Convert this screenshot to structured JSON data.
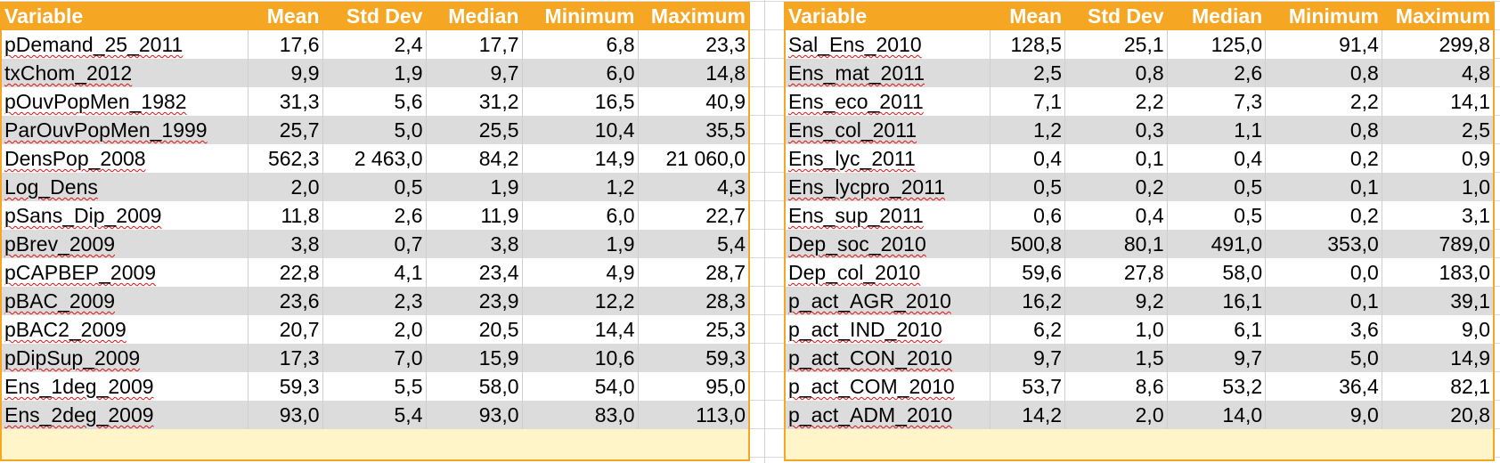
{
  "headers": [
    "Variable",
    "Mean",
    "Std Dev",
    "Median",
    "Minimum",
    "Maximum"
  ],
  "left_table": {
    "rows": [
      [
        "pDemand_25_2011",
        "17,6",
        "2,4",
        "17,7",
        "6,8",
        "23,3"
      ],
      [
        "txChom_2012",
        "9,9",
        "1,9",
        "9,7",
        "6,0",
        "14,8"
      ],
      [
        "pOuvPopMen_1982",
        "31,3",
        "5,6",
        "31,2",
        "16,5",
        "40,9"
      ],
      [
        "ParOuvPopMen_1999",
        "25,7",
        "5,0",
        "25,5",
        "10,4",
        "35,5"
      ],
      [
        "DensPop_2008",
        "562,3",
        "2 463,0",
        "84,2",
        "14,9",
        "21 060,0"
      ],
      [
        "Log_Dens",
        "2,0",
        "0,5",
        "1,9",
        "1,2",
        "4,3"
      ],
      [
        "pSans_Dip_2009",
        "11,8",
        "2,6",
        "11,9",
        "6,0",
        "22,7"
      ],
      [
        "pBrev_2009",
        "3,8",
        "0,7",
        "3,8",
        "1,9",
        "5,4"
      ],
      [
        "pCAPBEP_2009",
        "22,8",
        "4,1",
        "23,4",
        "4,9",
        "28,7"
      ],
      [
        "pBAC_2009",
        "23,6",
        "2,3",
        "23,9",
        "12,2",
        "28,3"
      ],
      [
        "pBAC2_2009",
        "20,7",
        "2,0",
        "20,5",
        "14,4",
        "25,3"
      ],
      [
        "pDipSup_2009",
        "17,3",
        "7,0",
        "15,9",
        "10,6",
        "59,3"
      ],
      [
        "Ens_1deg_2009",
        "59,3",
        "5,5",
        "58,0",
        "54,0",
        "95,0"
      ],
      [
        "Ens_2deg_2009",
        "93,0",
        "5,4",
        "93,0",
        "83,0",
        "113,0"
      ]
    ]
  },
  "right_table": {
    "rows": [
      [
        "Sal_Ens_2010",
        "128,5",
        "25,1",
        "125,0",
        "91,4",
        "299,8"
      ],
      [
        "Ens_mat_2011",
        "2,5",
        "0,8",
        "2,6",
        "0,8",
        "4,8"
      ],
      [
        "Ens_eco_2011",
        "7,1",
        "2,2",
        "7,3",
        "2,2",
        "14,1"
      ],
      [
        "Ens_col_2011",
        "1,2",
        "0,3",
        "1,1",
        "0,8",
        "2,5"
      ],
      [
        "Ens_lyc_2011",
        "0,4",
        "0,1",
        "0,4",
        "0,2",
        "0,9"
      ],
      [
        "Ens_lycpro_2011",
        "0,5",
        "0,2",
        "0,5",
        "0,1",
        "1,0"
      ],
      [
        "Ens_sup_2011",
        "0,6",
        "0,4",
        "0,5",
        "0,2",
        "3,1"
      ],
      [
        "Dep_soc_2010",
        "500,8",
        "80,1",
        "491,0",
        "353,0",
        "789,0"
      ],
      [
        "Dep_col_2010",
        "59,6",
        "27,8",
        "58,0",
        "0,0",
        "183,0"
      ],
      [
        "p_act_AGR_2010",
        "16,2",
        "9,2",
        "16,1",
        "0,1",
        "39,1"
      ],
      [
        "p_act_IND_2010",
        "6,2",
        "1,0",
        "6,1",
        "3,6",
        "9,0"
      ],
      [
        "p_act_CON_2010",
        "9,7",
        "1,5",
        "9,7",
        "5,0",
        "14,9"
      ],
      [
        "p_act_COM_2010",
        "53,7",
        "8,6",
        "53,2",
        "36,4",
        "82,1"
      ],
      [
        "p_act_ADM_2010",
        "14,2",
        "2,0",
        "14,0",
        "9,0",
        "20,8"
      ]
    ]
  },
  "colors": {
    "header_bg": "#f5a623",
    "header_text": "#ffffff",
    "band_gray": "#dcdcdc",
    "filler_yellow": "#fff5c8"
  }
}
